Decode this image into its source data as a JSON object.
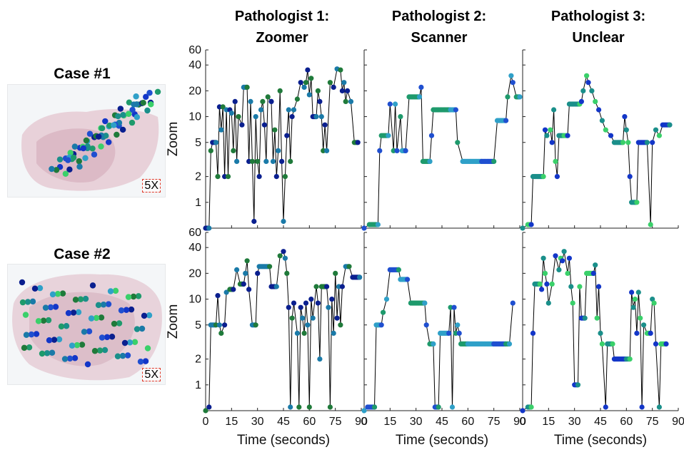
{
  "cases": [
    {
      "title": "Case #1",
      "scale_label": "5X"
    },
    {
      "title": "Case #2",
      "scale_label": "5X"
    }
  ],
  "colors": {
    "line": "#000000",
    "dot_palette": [
      "#0a1f8f",
      "#1336c8",
      "#1f4fd0",
      "#1a7aa8",
      "#1a8f8a",
      "#1e9a6c",
      "#1f7a3a",
      "#3ad06a",
      "#2fa0c8"
    ],
    "tissue": "#d9b8c4",
    "scale_box": "#e03a2a"
  },
  "chart_data": [
    {
      "type": "scatter",
      "subtype": "step-line-with-markers",
      "row": 1,
      "col": 1,
      "title": "Pathologist 1:\nZoomer",
      "xlabel": "",
      "ylabel": "Zoom",
      "xlim": [
        0,
        90
      ],
      "ylim": [
        0.5,
        60
      ],
      "yscale": "log",
      "xticks": [
        0,
        15,
        30,
        45,
        60,
        75,
        90
      ],
      "yticks": [
        1,
        2,
        5,
        10,
        20,
        40,
        60
      ],
      "points": [
        [
          0,
          0.5
        ],
        [
          2,
          0.5
        ],
        [
          3,
          4
        ],
        [
          4,
          5
        ],
        [
          6,
          5
        ],
        [
          7,
          2
        ],
        [
          8,
          13
        ],
        [
          9,
          7
        ],
        [
          10,
          13
        ],
        [
          11,
          2
        ],
        [
          12,
          12
        ],
        [
          13,
          2
        ],
        [
          14,
          12
        ],
        [
          15,
          11
        ],
        [
          16,
          4
        ],
        [
          17,
          15
        ],
        [
          18,
          3
        ],
        [
          19,
          10
        ],
        [
          21,
          8
        ],
        [
          22,
          22
        ],
        [
          24,
          22
        ],
        [
          25,
          3
        ],
        [
          26,
          15
        ],
        [
          27,
          3
        ],
        [
          28,
          0.6
        ],
        [
          29,
          10
        ],
        [
          30,
          3
        ],
        [
          31,
          2
        ],
        [
          32,
          12
        ],
        [
          33,
          15
        ],
        [
          34,
          8
        ],
        [
          35,
          3
        ],
        [
          36,
          17
        ],
        [
          38,
          15
        ],
        [
          39,
          3
        ],
        [
          40,
          7
        ],
        [
          41,
          2
        ],
        [
          42,
          4
        ],
        [
          43,
          20
        ],
        [
          44,
          3
        ],
        [
          45,
          0.6
        ],
        [
          46,
          2
        ],
        [
          47,
          6
        ],
        [
          48,
          12
        ],
        [
          49,
          3
        ],
        [
          50,
          10
        ],
        [
          51,
          12
        ],
        [
          53,
          16
        ],
        [
          55,
          25
        ],
        [
          57,
          22
        ],
        [
          58,
          25
        ],
        [
          59,
          35
        ],
        [
          60,
          18
        ],
        [
          61,
          28
        ],
        [
          62,
          10
        ],
        [
          64,
          10
        ],
        [
          65,
          20
        ],
        [
          66,
          15
        ],
        [
          67,
          10
        ],
        [
          68,
          4
        ],
        [
          69,
          8
        ],
        [
          70,
          4
        ],
        [
          72,
          25
        ],
        [
          74,
          22
        ],
        [
          76,
          36
        ],
        [
          78,
          35
        ],
        [
          79,
          20
        ],
        [
          80,
          25
        ],
        [
          81,
          15
        ],
        [
          82,
          20
        ],
        [
          84,
          15
        ],
        [
          86,
          5
        ],
        [
          88,
          5
        ]
      ]
    },
    {
      "type": "scatter",
      "subtype": "step-line-with-markers",
      "row": 1,
      "col": 2,
      "title": "Pathologist 2:\nScanner",
      "xlabel": "",
      "ylabel": "",
      "xlim": [
        0,
        90
      ],
      "ylim": [
        0.5,
        60
      ],
      "yscale": "log",
      "xticks": [
        0,
        15,
        30,
        45,
        60,
        75,
        90
      ],
      "yticks": [
        1,
        2,
        5,
        10,
        20,
        40,
        60
      ],
      "points": [
        [
          0,
          0.5
        ],
        [
          3,
          0.55
        ],
        [
          8,
          0.55
        ],
        [
          9,
          4
        ],
        [
          10,
          6
        ],
        [
          14,
          6
        ],
        [
          15,
          14
        ],
        [
          17,
          4
        ],
        [
          18,
          14
        ],
        [
          19,
          4
        ],
        [
          21,
          10
        ],
        [
          22,
          4
        ],
        [
          24,
          4
        ],
        [
          26,
          17
        ],
        [
          32,
          17
        ],
        [
          33,
          22
        ],
        [
          34,
          3
        ],
        [
          38,
          3
        ],
        [
          39,
          6
        ],
        [
          40,
          12
        ],
        [
          50,
          12
        ],
        [
          53,
          12
        ],
        [
          54,
          5
        ],
        [
          57,
          3
        ],
        [
          68,
          3
        ],
        [
          75,
          3
        ],
        [
          77,
          9
        ],
        [
          82,
          9
        ],
        [
          83,
          17
        ],
        [
          85,
          30
        ],
        [
          86,
          25
        ],
        [
          88,
          17
        ],
        [
          90,
          17
        ]
      ]
    },
    {
      "type": "scatter",
      "subtype": "step-line-with-markers",
      "row": 1,
      "col": 3,
      "title": "Pathologist 3:\nUnclear",
      "xlabel": "",
      "ylabel": "",
      "xlim": [
        0,
        90
      ],
      "ylim": [
        0.5,
        60
      ],
      "yscale": "log",
      "xticks": [
        0,
        15,
        30,
        45,
        60,
        75,
        90
      ],
      "yticks": [
        1,
        2,
        5,
        10,
        20,
        40,
        60
      ],
      "points": [
        [
          0,
          0.5
        ],
        [
          3,
          0.55
        ],
        [
          5,
          0.55
        ],
        [
          6,
          2
        ],
        [
          12,
          2
        ],
        [
          13,
          7
        ],
        [
          14,
          6
        ],
        [
          16,
          7
        ],
        [
          17,
          5
        ],
        [
          18,
          12
        ],
        [
          19,
          3
        ],
        [
          20,
          2
        ],
        [
          21,
          6
        ],
        [
          24,
          6
        ],
        [
          26,
          6
        ],
        [
          27,
          14
        ],
        [
          33,
          14
        ],
        [
          34,
          15
        ],
        [
          35,
          20
        ],
        [
          37,
          30
        ],
        [
          38,
          25
        ],
        [
          40,
          20
        ],
        [
          42,
          15
        ],
        [
          44,
          12
        ],
        [
          46,
          9
        ],
        [
          48,
          7
        ],
        [
          51,
          6
        ],
        [
          53,
          5
        ],
        [
          58,
          5
        ],
        [
          59,
          10
        ],
        [
          60,
          7
        ],
        [
          61,
          5
        ],
        [
          62,
          2
        ],
        [
          63,
          1
        ],
        [
          66,
          1
        ],
        [
          67,
          5
        ],
        [
          72,
          5
        ],
        [
          74,
          0.55
        ],
        [
          75,
          5
        ],
        [
          77,
          7
        ],
        [
          79,
          6
        ],
        [
          81,
          8
        ],
        [
          85,
          8
        ]
      ]
    },
    {
      "type": "scatter",
      "subtype": "step-line-with-markers",
      "row": 2,
      "col": 1,
      "title": "",
      "xlabel": "Time (seconds)",
      "ylabel": "Zoom",
      "xlim": [
        0,
        90
      ],
      "ylim": [
        0.5,
        60
      ],
      "yscale": "log",
      "xticks": [
        0,
        15,
        30,
        45,
        60,
        75,
        90
      ],
      "yticks": [
        1,
        2,
        5,
        10,
        20,
        40,
        60
      ],
      "points": [
        [
          0,
          0.5
        ],
        [
          2,
          0.55
        ],
        [
          3,
          5
        ],
        [
          6,
          5
        ],
        [
          7,
          11
        ],
        [
          8,
          5
        ],
        [
          9,
          4
        ],
        [
          11,
          5
        ],
        [
          12,
          12
        ],
        [
          14,
          13
        ],
        [
          16,
          13
        ],
        [
          18,
          22
        ],
        [
          20,
          15
        ],
        [
          22,
          15
        ],
        [
          23,
          20
        ],
        [
          24,
          28
        ],
        [
          25,
          13
        ],
        [
          27,
          5
        ],
        [
          29,
          5
        ],
        [
          30,
          20
        ],
        [
          31,
          24
        ],
        [
          37,
          24
        ],
        [
          38,
          14
        ],
        [
          41,
          14
        ],
        [
          43,
          32
        ],
        [
          45,
          36
        ],
        [
          46,
          30
        ],
        [
          47,
          20
        ],
        [
          48,
          8
        ],
        [
          49,
          0.55
        ],
        [
          50,
          6
        ],
        [
          51,
          9
        ],
        [
          53,
          4
        ],
        [
          54,
          0.55
        ],
        [
          55,
          8
        ],
        [
          56,
          6
        ],
        [
          57,
          4
        ],
        [
          58,
          9
        ],
        [
          59,
          5
        ],
        [
          60,
          0.55
        ],
        [
          61,
          10
        ],
        [
          62,
          6
        ],
        [
          64,
          14
        ],
        [
          65,
          9
        ],
        [
          66,
          2
        ],
        [
          67,
          14
        ],
        [
          70,
          14
        ],
        [
          71,
          8
        ],
        [
          72,
          0.55
        ],
        [
          73,
          10
        ],
        [
          74,
          4
        ],
        [
          75,
          20
        ],
        [
          76,
          6
        ],
        [
          77,
          14
        ],
        [
          78,
          5
        ],
        [
          79,
          14
        ],
        [
          81,
          24
        ],
        [
          83,
          24
        ],
        [
          85,
          18
        ],
        [
          89,
          18
        ]
      ]
    },
    {
      "type": "scatter",
      "subtype": "step-line-with-markers",
      "row": 2,
      "col": 2,
      "title": "",
      "xlabel": "Time (seconds)",
      "ylabel": "",
      "xlim": [
        0,
        90
      ],
      "ylim": [
        0.5,
        60
      ],
      "yscale": "log",
      "xticks": [
        0,
        15,
        30,
        45,
        60,
        75,
        90
      ],
      "yticks": [
        1,
        2,
        5,
        10,
        20,
        40,
        60
      ],
      "points": [
        [
          0,
          0.5
        ],
        [
          2,
          0.55
        ],
        [
          6,
          0.55
        ],
        [
          7,
          5
        ],
        [
          10,
          5
        ],
        [
          11,
          7
        ],
        [
          13,
          10
        ],
        [
          15,
          22
        ],
        [
          20,
          22
        ],
        [
          21,
          17
        ],
        [
          25,
          17
        ],
        [
          27,
          9
        ],
        [
          35,
          9
        ],
        [
          36,
          5
        ],
        [
          38,
          3
        ],
        [
          40,
          3
        ],
        [
          41,
          0.55
        ],
        [
          43,
          0.55
        ],
        [
          44,
          4
        ],
        [
          49,
          4
        ],
        [
          50,
          8
        ],
        [
          51,
          0.55
        ],
        [
          52,
          8
        ],
        [
          53,
          4
        ],
        [
          54,
          5
        ],
        [
          55,
          4
        ],
        [
          56,
          3
        ],
        [
          60,
          3
        ],
        [
          75,
          3
        ],
        [
          82,
          3
        ],
        [
          84,
          3
        ],
        [
          86,
          9
        ]
      ]
    },
    {
      "type": "scatter",
      "subtype": "step-line-with-markers",
      "row": 2,
      "col": 3,
      "title": "",
      "xlabel": "Time (seconds)",
      "ylabel": "",
      "xlim": [
        0,
        90
      ],
      "ylim": [
        0.5,
        60
      ],
      "yscale": "log",
      "xticks": [
        0,
        15,
        30,
        45,
        60,
        75,
        90
      ],
      "yticks": [
        1,
        2,
        5,
        10,
        20,
        40,
        60
      ],
      "points": [
        [
          0,
          0.5
        ],
        [
          3,
          0.55
        ],
        [
          5,
          0.55
        ],
        [
          6,
          4
        ],
        [
          7,
          15
        ],
        [
          10,
          15
        ],
        [
          11,
          13
        ],
        [
          12,
          30
        ],
        [
          13,
          20
        ],
        [
          14,
          15
        ],
        [
          15,
          9
        ],
        [
          17,
          15
        ],
        [
          19,
          32
        ],
        [
          21,
          22
        ],
        [
          22,
          30
        ],
        [
          23,
          28
        ],
        [
          24,
          36
        ],
        [
          26,
          20
        ],
        [
          27,
          30
        ],
        [
          28,
          14
        ],
        [
          29,
          9
        ],
        [
          30,
          1
        ],
        [
          32,
          1
        ],
        [
          33,
          14
        ],
        [
          34,
          6
        ],
        [
          36,
          6
        ],
        [
          37,
          20
        ],
        [
          41,
          20
        ],
        [
          42,
          25
        ],
        [
          43,
          6
        ],
        [
          44,
          14
        ],
        [
          45,
          4
        ],
        [
          46,
          3
        ],
        [
          48,
          0.55
        ],
        [
          49,
          3
        ],
        [
          52,
          3
        ],
        [
          53,
          2
        ],
        [
          60,
          2
        ],
        [
          62,
          2
        ],
        [
          63,
          12
        ],
        [
          64,
          8
        ],
        [
          65,
          10
        ],
        [
          66,
          4
        ],
        [
          67,
          12
        ],
        [
          68,
          6
        ],
        [
          69,
          0.55
        ],
        [
          70,
          5
        ],
        [
          72,
          4
        ],
        [
          74,
          4
        ],
        [
          75,
          10
        ],
        [
          76,
          9
        ],
        [
          77,
          3
        ],
        [
          79,
          0.55
        ],
        [
          80,
          3
        ],
        [
          83,
          3
        ]
      ]
    }
  ]
}
